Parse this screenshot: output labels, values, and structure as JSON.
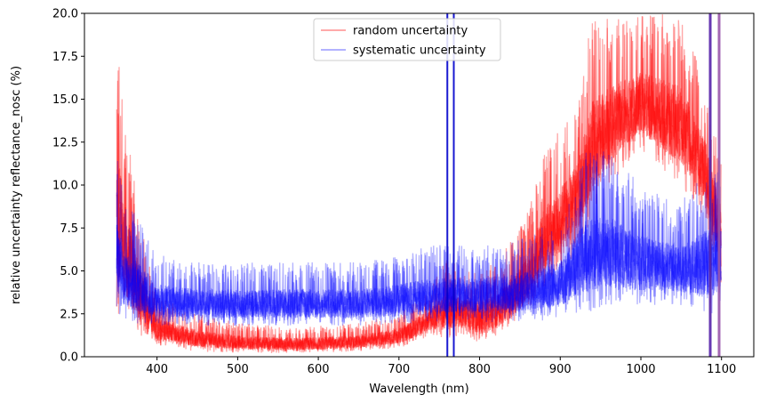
{
  "chart_data": {
    "type": "line",
    "title": "",
    "xlabel": "Wavelength (nm)",
    "ylabel": "relative uncertainty reflectance_nosc (%)",
    "xlim": [
      310,
      1140
    ],
    "ylim": [
      0,
      20
    ],
    "xticks": [
      400,
      500,
      600,
      700,
      800,
      900,
      1000,
      1100
    ],
    "yticks": [
      0.0,
      2.5,
      5.0,
      7.5,
      10.0,
      12.5,
      15.0,
      17.5,
      20.0
    ],
    "ytick_labels": [
      "0.0",
      "2.5",
      "5.0",
      "7.5",
      "10.0",
      "12.5",
      "15.0",
      "17.5",
      "20.0"
    ],
    "grid": false,
    "legend": "upper-center",
    "x_range": [
      350,
      1100
    ],
    "series": [
      {
        "name": "random uncertainty",
        "color": "#ff0000",
        "alpha": 0.35,
        "envelope": {
          "x": [
            350,
            360,
            380,
            400,
            450,
            500,
            550,
            600,
            650,
            700,
            740,
            760,
            780,
            800,
            820,
            850,
            880,
            920,
            940,
            960,
            1000,
            1050,
            1080,
            1100
          ],
          "low": [
            2.5,
            2.0,
            1.2,
            0.6,
            0.3,
            0.2,
            0.2,
            0.2,
            0.3,
            0.5,
            1.2,
            1.0,
            1.2,
            0.8,
            1.0,
            2.0,
            4.0,
            6.0,
            8.0,
            10.0,
            12.0,
            10.0,
            8.0,
            4.0
          ],
          "high": [
            20.0,
            14.0,
            8.0,
            3.5,
            2.5,
            2.0,
            1.8,
            1.8,
            2.0,
            2.5,
            4.0,
            6.0,
            5.0,
            5.0,
            5.5,
            7.5,
            12.0,
            15.0,
            20.0,
            20.0,
            20.0,
            20.0,
            16.0,
            12.0
          ]
        }
      },
      {
        "name": "systematic uncertainty",
        "color": "#0000ff",
        "alpha": 0.3,
        "envelope": {
          "x": [
            350,
            360,
            380,
            400,
            450,
            500,
            550,
            600,
            650,
            700,
            740,
            760,
            780,
            800,
            850,
            900,
            930,
            960,
            1000,
            1050,
            1080,
            1100
          ],
          "low": [
            2.5,
            2.0,
            1.8,
            1.8,
            1.8,
            1.8,
            1.8,
            1.8,
            1.8,
            1.8,
            2.0,
            2.0,
            2.0,
            2.0,
            2.0,
            2.2,
            2.5,
            3.0,
            3.0,
            3.0,
            2.5,
            2.5
          ],
          "high": [
            12.0,
            9.0,
            8.0,
            6.0,
            5.5,
            5.5,
            5.5,
            5.5,
            5.5,
            6.0,
            6.5,
            6.5,
            6.5,
            6.5,
            7.0,
            8.0,
            12.0,
            12.0,
            10.0,
            9.0,
            11.0,
            11.0
          ]
        }
      }
    ],
    "spikes": [
      {
        "x": 760,
        "color": "#0000cc"
      },
      {
        "x": 768,
        "color": "#0000cc"
      },
      {
        "x": 1086,
        "color": "#5522aa"
      },
      {
        "x": 1097,
        "color": "#9955aa"
      }
    ]
  }
}
